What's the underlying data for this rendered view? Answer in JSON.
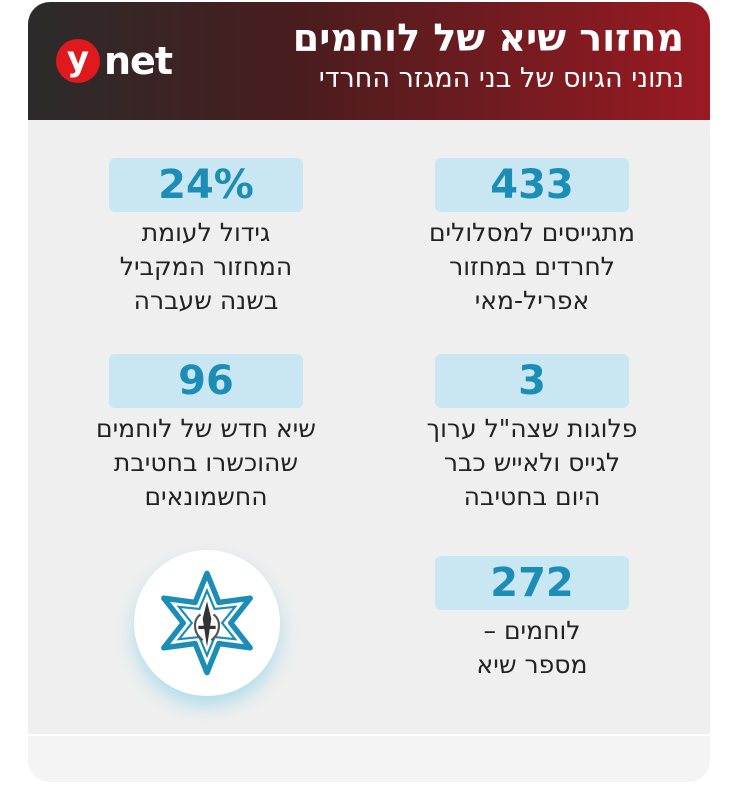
{
  "header": {
    "title": "מחזור שיא של לוחמים",
    "subtitle": "נתוני הגיוס של בני המגזר החרדי",
    "logo": {
      "letter": "y",
      "word": "net",
      "color": "#e0191f"
    }
  },
  "stats": [
    {
      "value": "433",
      "lines": [
        "מתגייסים למסלולים",
        "לחרדים במחזור",
        "אפריל-מאי"
      ]
    },
    {
      "value": "24%",
      "lines": [
        "גידול לעומת",
        "המחזור המקביל",
        "בשנה שעברה"
      ]
    },
    {
      "value": "3",
      "lines": [
        "פלוגות שצה\"ל ערוך",
        "לגייס ולאייש כבר",
        "היום בחטיבה"
      ]
    },
    {
      "value": "96",
      "lines": [
        "שיא חדש של לוחמים",
        "שהוכשרו בחטיבת",
        "החשמונאים"
      ]
    },
    {
      "value": "272",
      "lines": [
        "לוחמים –",
        "מספר שיא"
      ]
    }
  ],
  "emblem": {
    "icon": "idf-emblem-icon",
    "color": "#1b8db6"
  },
  "colors": {
    "pill_bg": "#c9e7f2",
    "pill_text": "#1b8db6",
    "header_end": "#9b1a22"
  }
}
